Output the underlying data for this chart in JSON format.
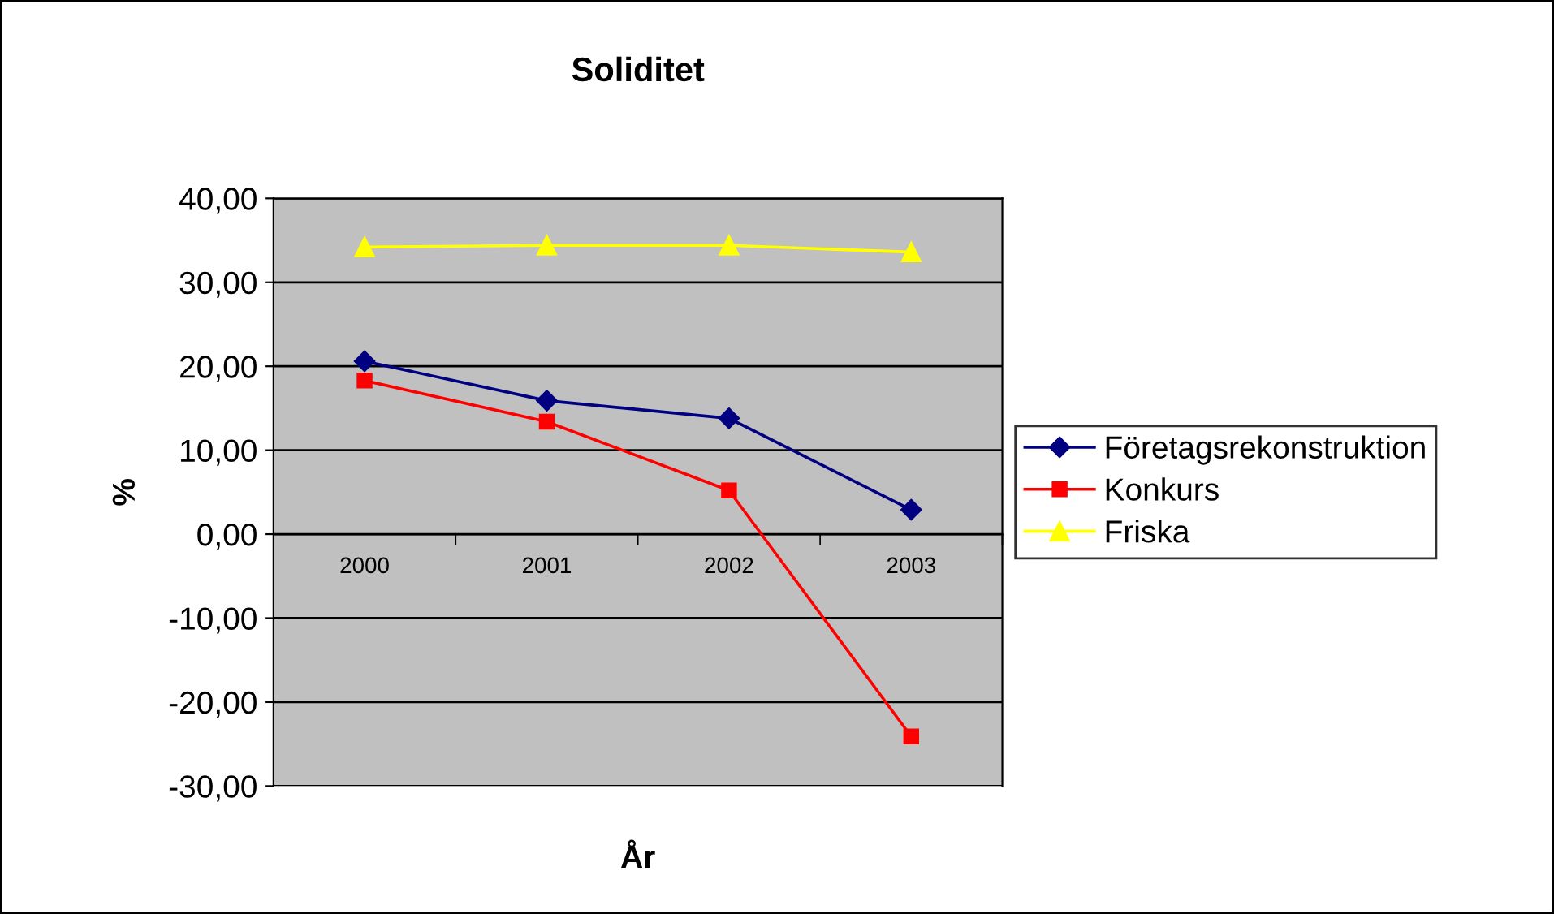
{
  "chart_data": {
    "type": "line",
    "title": "Soliditet",
    "xlabel": "År",
    "ylabel": "%",
    "categories": [
      "2000",
      "2001",
      "2002",
      "2003"
    ],
    "series": [
      {
        "name": "Företagsrekonstruktion",
        "color": "#000080",
        "marker": "diamond",
        "values": [
          20.6,
          15.9,
          13.8,
          2.9
        ]
      },
      {
        "name": "Konkurs",
        "color": "#ff0000",
        "marker": "square",
        "values": [
          18.3,
          13.4,
          5.2,
          -24.1
        ]
      },
      {
        "name": "Friska",
        "color": "#ffff00",
        "marker": "triangle",
        "values": [
          34.2,
          34.4,
          34.4,
          33.6
        ]
      }
    ],
    "ylim": [
      -30,
      40
    ],
    "yticks": [
      {
        "value": -30,
        "label": "-30,00"
      },
      {
        "value": -20,
        "label": "-20,00"
      },
      {
        "value": -10,
        "label": "-10,00"
      },
      {
        "value": 0,
        "label": "0,00"
      },
      {
        "value": 10,
        "label": "10,00"
      },
      {
        "value": 20,
        "label": "20,00"
      },
      {
        "value": 30,
        "label": "30,00"
      },
      {
        "value": 40,
        "label": "40,00"
      }
    ],
    "grid": "y",
    "legend": "right",
    "line_style": "solid"
  }
}
